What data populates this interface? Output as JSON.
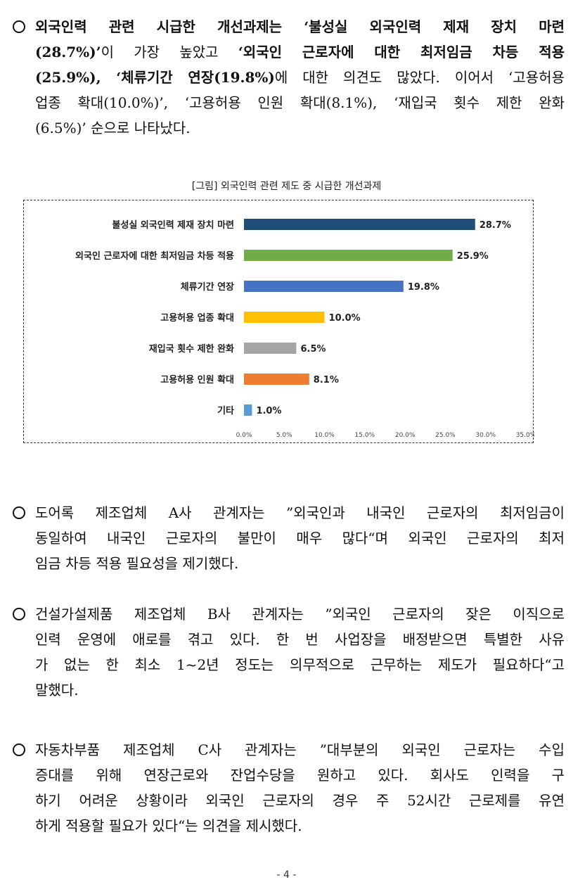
{
  "intro": {
    "lines": [
      [
        {
          "t": "외국인력 관련 시급한 개선과제는 ‘불성실 외국인력 제재 장치 마련",
          "b": true
        }
      ],
      [
        {
          "t": "(28.7%)’",
          "b": true
        },
        {
          "t": "이 가장 높았고 ",
          "b": false
        },
        {
          "t": "‘외국인 근로자에 대한 최저임금 차등 적용",
          "b": true
        }
      ],
      [
        {
          "t": "(25.9%), ‘체류기간 연장(19.8%)",
          "b": true
        },
        {
          "t": "에 대한 의견도 많았다. 이어서 ‘고용허용",
          "b": false
        }
      ],
      [
        {
          "t": "업종 확대(10.0%)’, ‘고용허용 인원 확대(8.1%), ‘재입국 횟수 제한 완화",
          "b": false
        }
      ],
      [
        {
          "t": "(6.5%)’ 순으로 나타났다.",
          "b": false
        }
      ]
    ]
  },
  "figure_title": "[그림] 외국인력 관련 제도 중 시급한 개선과제",
  "chart_data": {
    "type": "bar",
    "orientation": "horizontal",
    "title": "",
    "categories": [
      "불성실 외국인력 제재 장치 마련",
      "외국인 근로자에 대한 최저임금 차등 적용",
      "체류기간 연장",
      "고용허용 업종 확대",
      "재입국 횟수 제한 완화",
      "고용허용 인원 확대",
      "기타"
    ],
    "values": [
      28.7,
      25.9,
      19.8,
      10.0,
      6.5,
      8.1,
      1.0
    ],
    "value_labels": [
      "28.7%",
      "25.9%",
      "19.8%",
      "10.0%",
      "6.5%",
      "8.1%",
      "1.0%"
    ],
    "colors": [
      "#1f4e79",
      "#70ad47",
      "#4472c4",
      "#ffc000",
      "#a5a5a5",
      "#ed7d31",
      "#5b9bd5"
    ],
    "xlim": [
      0,
      35
    ],
    "xticks": [
      "0.0%",
      "5.0%",
      "10.0%",
      "15.0%",
      "20.0%",
      "25.0%",
      "30.0%",
      "35.0%"
    ],
    "grid": false,
    "legend": "none"
  },
  "opinions": [
    {
      "lines": [
        "도어록 제조업체 A사 관계자는 ”외국인과 내국인 근로자의 최저임금이",
        "동일하여 내국인 근로자의 불만이 매우 많다“며 외국인 근로자의 최저",
        "임금 차등 적용 필요성을 제기했다."
      ]
    },
    {
      "lines": [
        "건설가설제품 제조업체 B사 관계자는 ”외국인 근로자의 잦은 이직으로",
        "인력 운영에 애로를 겪고 있다. 한 번 사업장을 배정받으면 특별한 사유",
        "가 없는 한 최소 1~2년 정도는 의무적으로 근무하는 제도가 필요하다“고",
        "말했다."
      ]
    },
    {
      "lines": [
        "자동차부품 제조업체 C사 관계자는 ”대부분의 외국인 근로자는 수입",
        "증대를 위해 연장근로와 잔업수당을 원하고 있다. 회사도 인력을 구",
        "하기 어려운 상황이라 외국인 근로자의 경우 주 52시간 근로제를 유연",
        "하게 적용할 필요가 있다“는 의견을 제시했다."
      ]
    }
  ],
  "page_number": "- 4 -"
}
